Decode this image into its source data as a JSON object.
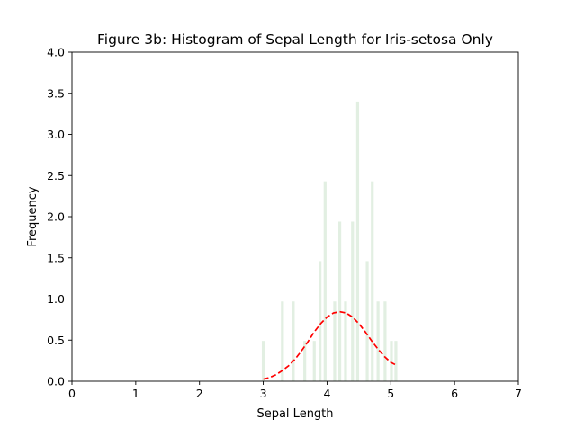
{
  "chart_data": {
    "type": "bar",
    "title": "Figure 3b: Histogram of Sepal Length for Iris-setosa Only",
    "xlabel": "Sepal Length",
    "ylabel": "Frequency",
    "xlim": [
      0,
      7
    ],
    "ylim": [
      0,
      4
    ],
    "xticks": [
      "0",
      "1",
      "2",
      "3",
      "4",
      "5",
      "6",
      "7"
    ],
    "yticks": [
      "0.0",
      "0.5",
      "1.0",
      "1.5",
      "2.0",
      "2.5",
      "3.0",
      "3.5",
      "4.0"
    ],
    "grid": false,
    "bar_color": "#d8ead8",
    "bars": [
      {
        "x": 3.0,
        "value": 0.49
      },
      {
        "x": 3.3,
        "value": 0.97
      },
      {
        "x": 3.47,
        "value": 0.97
      },
      {
        "x": 3.65,
        "value": 0.49
      },
      {
        "x": 3.8,
        "value": 0.49
      },
      {
        "x": 3.89,
        "value": 1.46
      },
      {
        "x": 3.97,
        "value": 2.43
      },
      {
        "x": 4.12,
        "value": 0.97
      },
      {
        "x": 4.2,
        "value": 1.94
      },
      {
        "x": 4.29,
        "value": 0.97
      },
      {
        "x": 4.4,
        "value": 1.94
      },
      {
        "x": 4.48,
        "value": 3.4
      },
      {
        "x": 4.63,
        "value": 1.46
      },
      {
        "x": 4.71,
        "value": 2.43
      },
      {
        "x": 4.8,
        "value": 0.97
      },
      {
        "x": 4.91,
        "value": 0.97
      },
      {
        "x": 5.01,
        "value": 0.49
      },
      {
        "x": 5.08,
        "value": 0.49
      }
    ],
    "curve": {
      "color": "#ff0000",
      "style": "dashed",
      "x": [
        3.0,
        3.1,
        3.2,
        3.3,
        3.4,
        3.5,
        3.6,
        3.7,
        3.8,
        3.9,
        4.0,
        4.1,
        4.2,
        4.3,
        4.4,
        4.5,
        4.6,
        4.7,
        4.8,
        4.9,
        5.0,
        5.1
      ],
      "y": [
        0.025,
        0.045,
        0.08,
        0.13,
        0.19,
        0.27,
        0.37,
        0.48,
        0.6,
        0.7,
        0.78,
        0.83,
        0.845,
        0.83,
        0.78,
        0.7,
        0.6,
        0.49,
        0.39,
        0.3,
        0.23,
        0.19
      ]
    }
  }
}
